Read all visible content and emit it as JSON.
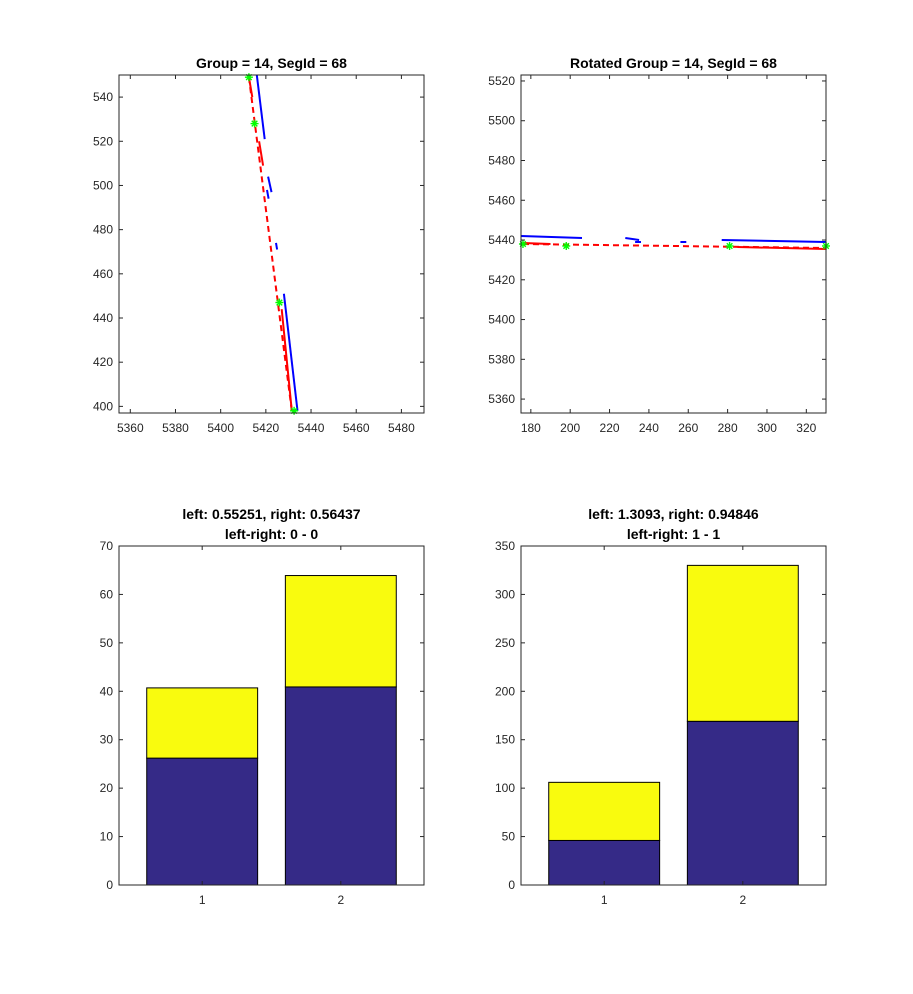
{
  "colors": {
    "blue_line": "#0000ff",
    "red_line": "#ff0000",
    "marker": "#00ff00",
    "bar_bottom": "#352a87",
    "bar_top": "#f9fb0e",
    "axes": "#262626"
  },
  "chart_data": [
    {
      "type": "line",
      "title": "Group = 14, SegId = 68",
      "subtitle": "",
      "xlim": [
        5355,
        5490
      ],
      "ylim": [
        397,
        550
      ],
      "xticks": [
        5360,
        5380,
        5400,
        5420,
        5440,
        5460,
        5480
      ],
      "yticks": [
        400,
        420,
        440,
        460,
        480,
        500,
        520,
        540
      ],
      "grid": false,
      "series": [
        {
          "color": "#0000ff",
          "style": "solid",
          "segments": [
            [
              [
                5416,
                550
              ],
              [
                5419.5,
                521
              ]
            ],
            [
              [
                5421,
                504
              ],
              [
                5422.5,
                497
              ]
            ],
            [
              [
                5420.5,
                498
              ],
              [
                5421.2,
                494
              ]
            ],
            [
              [
                5424.5,
                474
              ],
              [
                5425,
                471
              ]
            ],
            [
              [
                5428,
                451
              ],
              [
                5434,
                398
              ]
            ]
          ]
        },
        {
          "color": "#ff0000",
          "style": "dashed",
          "segments": [
            [
              [
                5412.5,
                549
              ],
              [
                5431.5,
                398
              ]
            ]
          ]
        },
        {
          "color": "#ff0000",
          "style": "solid",
          "segments": [
            [
              [
                5412.5,
                549
              ],
              [
                5414,
                540
              ]
            ],
            [
              [
                5417,
                520
              ],
              [
                5418.8,
                509
              ]
            ],
            [
              [
                5427,
                444
              ],
              [
                5431.5,
                398
              ]
            ]
          ]
        }
      ],
      "markers": {
        "color": "#00ff00",
        "points": [
          [
            5412.5,
            549
          ],
          [
            5415,
            528
          ],
          [
            5426,
            447
          ],
          [
            5432.5,
            398
          ]
        ]
      }
    },
    {
      "type": "line",
      "title": "Rotated Group = 14, SegId = 68",
      "subtitle": "",
      "xlim": [
        175,
        330
      ],
      "ylim": [
        5353,
        5523
      ],
      "xticks": [
        180,
        200,
        220,
        240,
        260,
        280,
        300,
        320
      ],
      "yticks": [
        5360,
        5380,
        5400,
        5420,
        5440,
        5460,
        5480,
        5500,
        5520
      ],
      "grid": false,
      "series": [
        {
          "color": "#0000ff",
          "style": "solid",
          "segments": [
            [
              [
                175,
                5442
              ],
              [
                206,
                5441
              ]
            ],
            [
              [
                228,
                5441
              ],
              [
                235,
                5440
              ]
            ],
            [
              [
                233,
                5439
              ],
              [
                236,
                5439
              ]
            ],
            [
              [
                256,
                5439
              ],
              [
                259,
                5439
              ]
            ],
            [
              [
                277,
                5440
              ],
              [
                330,
                5439
              ]
            ]
          ]
        },
        {
          "color": "#ff0000",
          "style": "dashed",
          "segments": [
            [
              [
                176,
                5438
              ],
              [
                330,
                5436
              ]
            ]
          ]
        },
        {
          "color": "#ff0000",
          "style": "solid",
          "segments": [
            [
              [
                176,
                5438.5
              ],
              [
                190,
                5438
              ]
            ],
            [
              [
                285,
                5436.5
              ],
              [
                330,
                5435.5
              ]
            ]
          ]
        }
      ],
      "markers": {
        "color": "#00ff00",
        "points": [
          [
            176,
            5438
          ],
          [
            198,
            5437
          ],
          [
            281,
            5437
          ],
          [
            330,
            5437
          ]
        ]
      }
    },
    {
      "type": "bar",
      "stacked": true,
      "title": "left: 0.55251, right: 0.56437",
      "subtitle": "left-right: 0 - 0",
      "categories": [
        "1",
        "2"
      ],
      "ylim": [
        0,
        70
      ],
      "yticks": [
        0,
        10,
        20,
        30,
        40,
        50,
        60,
        70
      ],
      "grid": false,
      "series": [
        {
          "color": "#352a87",
          "values": [
            26.2,
            40.9
          ]
        },
        {
          "color": "#f9fb0e",
          "values": [
            14.5,
            23.0
          ]
        }
      ]
    },
    {
      "type": "bar",
      "stacked": true,
      "title": "left: 1.3093, right: 0.94846",
      "subtitle": "left-right: 1 - 1",
      "categories": [
        "1",
        "2"
      ],
      "ylim": [
        0,
        350
      ],
      "yticks": [
        0,
        50,
        100,
        150,
        200,
        250,
        300,
        350
      ],
      "grid": false,
      "series": [
        {
          "color": "#352a87",
          "values": [
            46,
            169
          ]
        },
        {
          "color": "#f9fb0e",
          "values": [
            60,
            161
          ]
        }
      ]
    }
  ]
}
